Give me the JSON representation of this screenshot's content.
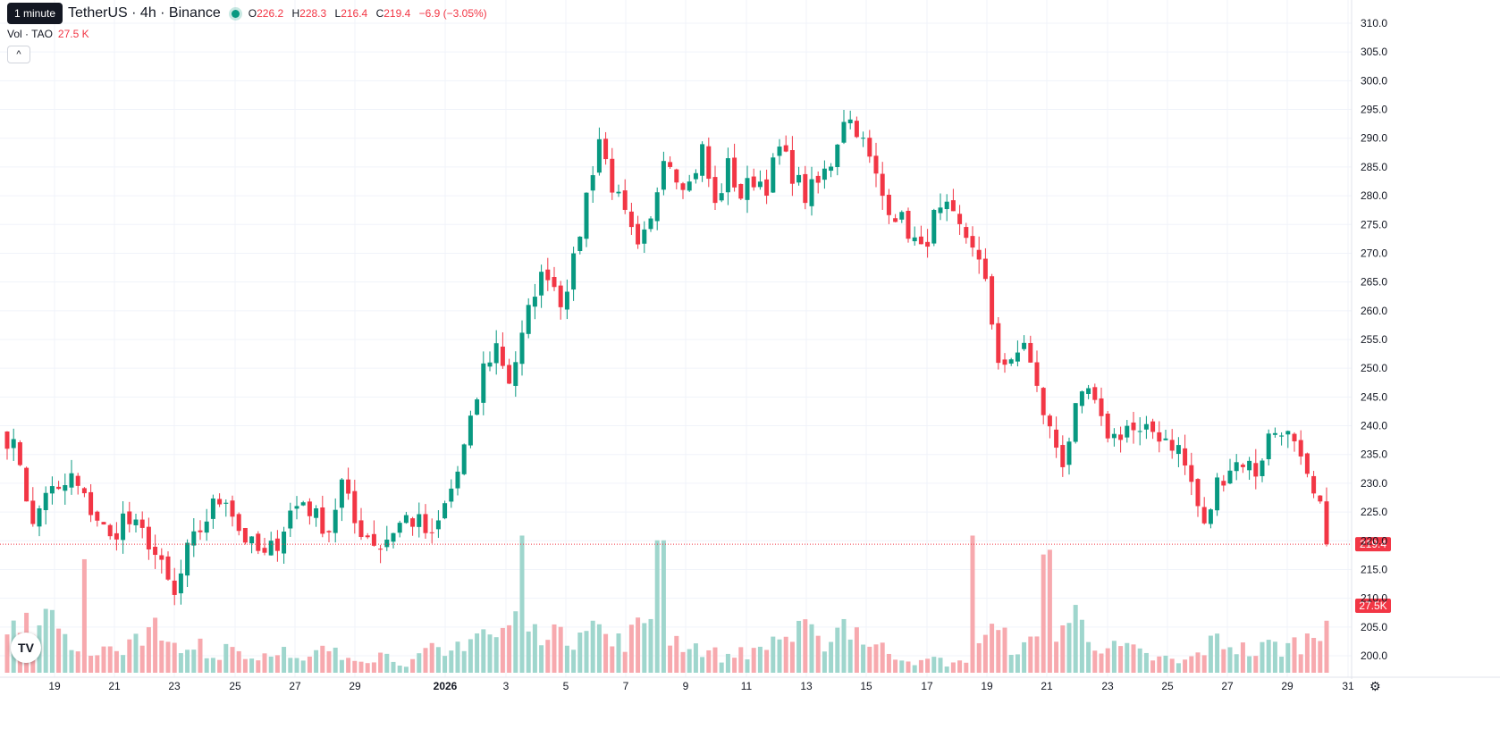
{
  "header": {
    "symbol": "TetherUS · 4h · Binance",
    "tooltip": "1 minute",
    "ohlc": {
      "o_label": "O",
      "o": "226.2",
      "h_label": "H",
      "h": "228.3",
      "l_label": "L",
      "l": "216.4",
      "c_label": "C",
      "c": "219.4",
      "change": "−6.9 (−3.05%)"
    },
    "volume_label": "Vol · TAO",
    "volume_value": "27.5 K",
    "collapse_icon": "chevron-up-icon",
    "logo_text": "TV"
  },
  "colors": {
    "up": "#089981",
    "down": "#f23645",
    "up_volume": "#9fd6cd",
    "down_volume": "#f7a9ae"
  },
  "chart_data": {
    "type": "candlestick",
    "price_axis": {
      "min": 200,
      "max": 310,
      "step": 5,
      "ticks": [
        "310.0",
        "305.0",
        "300.0",
        "295.0",
        "290.0",
        "285.0",
        "280.0",
        "275.0",
        "270.0",
        "265.0",
        "260.0",
        "255.0",
        "250.0",
        "245.0",
        "240.0",
        "235.0",
        "230.0",
        "225.0",
        "220.0",
        "215.0",
        "210.0",
        "205.0",
        "200.0"
      ]
    },
    "time_axis": [
      "19",
      "21",
      "23",
      "25",
      "27",
      "29",
      "2026",
      "3",
      "5",
      "7",
      "9",
      "11",
      "13",
      "15",
      "17",
      "19",
      "21",
      "23",
      "25",
      "27",
      "29",
      "31"
    ],
    "last_price": "219.4",
    "last_volume": "27.5K",
    "anchors": [
      [
        -4,
        256
      ],
      [
        -2,
        248
      ],
      [
        0,
        238
      ],
      [
        2,
        234
      ],
      [
        4,
        222
      ],
      [
        6,
        229
      ],
      [
        8,
        228
      ],
      [
        10,
        231
      ],
      [
        12,
        227
      ],
      [
        14,
        224
      ],
      [
        16,
        220
      ],
      [
        18,
        224
      ],
      [
        20,
        222
      ],
      [
        22,
        220
      ],
      [
        24,
        215
      ],
      [
        26,
        210
      ],
      [
        28,
        218
      ],
      [
        30,
        222
      ],
      [
        32,
        226
      ],
      [
        34,
        228
      ],
      [
        36,
        222
      ],
      [
        38,
        219
      ],
      [
        40,
        217
      ],
      [
        42,
        220
      ],
      [
        44,
        225
      ],
      [
        46,
        227
      ],
      [
        48,
        224
      ],
      [
        50,
        222
      ],
      [
        52,
        230
      ],
      [
        54,
        223
      ],
      [
        56,
        221
      ],
      [
        58,
        219
      ],
      [
        60,
        222
      ],
      [
        62,
        224
      ],
      [
        64,
        223
      ],
      [
        66,
        220
      ],
      [
        68,
        226
      ],
      [
        70,
        232
      ],
      [
        72,
        240
      ],
      [
        74,
        250
      ],
      [
        76,
        254
      ],
      [
        78,
        248
      ],
      [
        80,
        255
      ],
      [
        82,
        264
      ],
      [
        84,
        267
      ],
      [
        86,
        262
      ],
      [
        88,
        268
      ],
      [
        90,
        280
      ],
      [
        92,
        290
      ],
      [
        94,
        282
      ],
      [
        96,
        276
      ],
      [
        98,
        270
      ],
      [
        100,
        275
      ],
      [
        102,
        288
      ],
      [
        104,
        284
      ],
      [
        106,
        282
      ],
      [
        108,
        288
      ],
      [
        110,
        278
      ],
      [
        112,
        285
      ],
      [
        114,
        280
      ],
      [
        116,
        283
      ],
      [
        118,
        282
      ],
      [
        120,
        288
      ],
      [
        122,
        284
      ],
      [
        124,
        280
      ],
      [
        126,
        282
      ],
      [
        128,
        286
      ],
      [
        130,
        294
      ],
      [
        132,
        292
      ],
      [
        134,
        286
      ],
      [
        136,
        280
      ],
      [
        138,
        277
      ],
      [
        140,
        274
      ],
      [
        142,
        270
      ],
      [
        144,
        276
      ],
      [
        146,
        277
      ],
      [
        148,
        274
      ],
      [
        150,
        272
      ],
      [
        152,
        264
      ],
      [
        154,
        252
      ],
      [
        156,
        250
      ],
      [
        158,
        255
      ],
      [
        160,
        246
      ],
      [
        162,
        239
      ],
      [
        164,
        234
      ],
      [
        166,
        242
      ],
      [
        168,
        246
      ],
      [
        170,
        240
      ],
      [
        172,
        238
      ],
      [
        174,
        240
      ],
      [
        176,
        238
      ],
      [
        178,
        239
      ],
      [
        180,
        238
      ],
      [
        182,
        236
      ],
      [
        184,
        230
      ],
      [
        186,
        222
      ],
      [
        188,
        230
      ],
      [
        190,
        233
      ],
      [
        192,
        234
      ],
      [
        194,
        232
      ],
      [
        196,
        238
      ],
      [
        198,
        240
      ],
      [
        200,
        236
      ],
      [
        202,
        230
      ],
      [
        204,
        225
      ],
      [
        205,
        219.4
      ]
    ],
    "volume_max": 34.0,
    "volume_anchors": [
      [
        -4,
        15
      ],
      [
        0,
        8
      ],
      [
        2,
        12
      ],
      [
        4,
        7
      ],
      [
        6,
        10
      ],
      [
        8,
        13
      ],
      [
        10,
        5
      ],
      [
        12,
        6
      ],
      [
        14,
        4
      ],
      [
        16,
        5
      ],
      [
        18,
        3
      ],
      [
        20,
        8
      ],
      [
        22,
        11
      ],
      [
        24,
        6
      ],
      [
        26,
        5
      ],
      [
        28,
        4
      ],
      [
        30,
        7
      ],
      [
        32,
        3
      ],
      [
        34,
        6
      ],
      [
        36,
        5
      ],
      [
        38,
        3
      ],
      [
        40,
        4
      ],
      [
        42,
        6
      ],
      [
        44,
        3
      ],
      [
        46,
        2
      ],
      [
        48,
        4
      ],
      [
        50,
        5
      ],
      [
        52,
        3
      ],
      [
        54,
        4
      ],
      [
        56,
        3
      ],
      [
        58,
        4
      ],
      [
        60,
        3
      ],
      [
        62,
        2
      ],
      [
        64,
        3
      ],
      [
        66,
        5
      ],
      [
        68,
        3
      ],
      [
        70,
        6
      ],
      [
        72,
        8
      ],
      [
        74,
        9
      ],
      [
        76,
        7
      ],
      [
        78,
        10
      ],
      [
        80,
        12
      ],
      [
        82,
        8
      ],
      [
        84,
        11
      ],
      [
        86,
        7
      ],
      [
        88,
        8
      ],
      [
        90,
        14
      ],
      [
        92,
        9
      ],
      [
        94,
        6
      ],
      [
        96,
        7
      ],
      [
        98,
        9
      ],
      [
        100,
        13
      ],
      [
        102,
        8
      ],
      [
        104,
        7
      ],
      [
        106,
        6
      ],
      [
        108,
        5
      ],
      [
        110,
        4
      ],
      [
        112,
        3
      ],
      [
        114,
        5
      ],
      [
        116,
        4
      ],
      [
        118,
        6
      ],
      [
        120,
        8
      ],
      [
        122,
        7
      ],
      [
        124,
        9
      ],
      [
        126,
        6
      ],
      [
        128,
        8
      ],
      [
        130,
        11
      ],
      [
        132,
        9
      ],
      [
        134,
        6
      ],
      [
        136,
        5
      ],
      [
        138,
        4
      ],
      [
        140,
        3
      ],
      [
        142,
        2
      ],
      [
        144,
        3
      ],
      [
        146,
        2
      ],
      [
        148,
        2
      ],
      [
        150,
        4
      ],
      [
        152,
        9
      ],
      [
        154,
        8
      ],
      [
        156,
        6
      ],
      [
        158,
        5
      ],
      [
        160,
        7
      ],
      [
        162,
        9
      ],
      [
        164,
        10
      ],
      [
        166,
        12
      ],
      [
        168,
        8
      ],
      [
        170,
        6
      ],
      [
        172,
        5
      ],
      [
        174,
        5
      ],
      [
        176,
        4
      ],
      [
        178,
        3
      ],
      [
        180,
        3
      ],
      [
        182,
        2
      ],
      [
        184,
        3
      ],
      [
        186,
        5
      ],
      [
        188,
        7
      ],
      [
        190,
        6
      ],
      [
        192,
        5
      ],
      [
        194,
        4
      ],
      [
        196,
        6
      ],
      [
        198,
        5
      ],
      [
        200,
        6
      ],
      [
        202,
        7
      ],
      [
        204,
        9
      ],
      [
        205,
        11
      ]
    ],
    "volume_spikes": [
      [
        12,
        24
      ],
      [
        80,
        29
      ],
      [
        101,
        28
      ],
      [
        102,
        28
      ],
      [
        150,
        29
      ],
      [
        161,
        25
      ],
      [
        162,
        26
      ]
    ]
  }
}
